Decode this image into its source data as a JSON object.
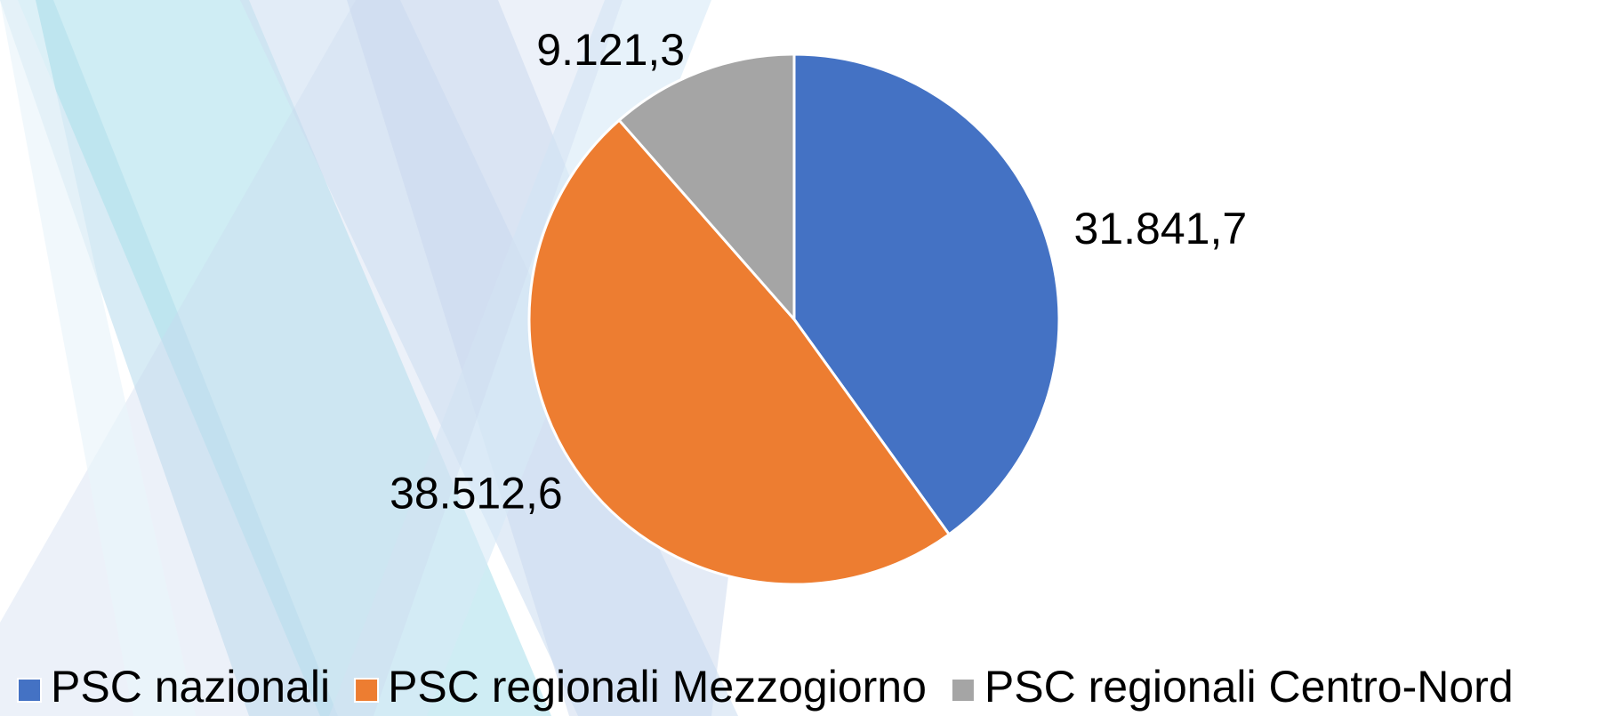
{
  "chart_data": {
    "type": "pie",
    "categories": [
      "PSC nazionali",
      "PSC regionali Mezzogiorno",
      "PSC regionali Centro-Nord"
    ],
    "values": [
      31841.7,
      38512.6,
      9121.3
    ],
    "value_labels": [
      "31.841,7",
      "38.512,6",
      "9.121,3"
    ],
    "colors": [
      "#4472c4",
      "#ed7d31",
      "#a5a5a5"
    ],
    "legend": "bottom"
  }
}
